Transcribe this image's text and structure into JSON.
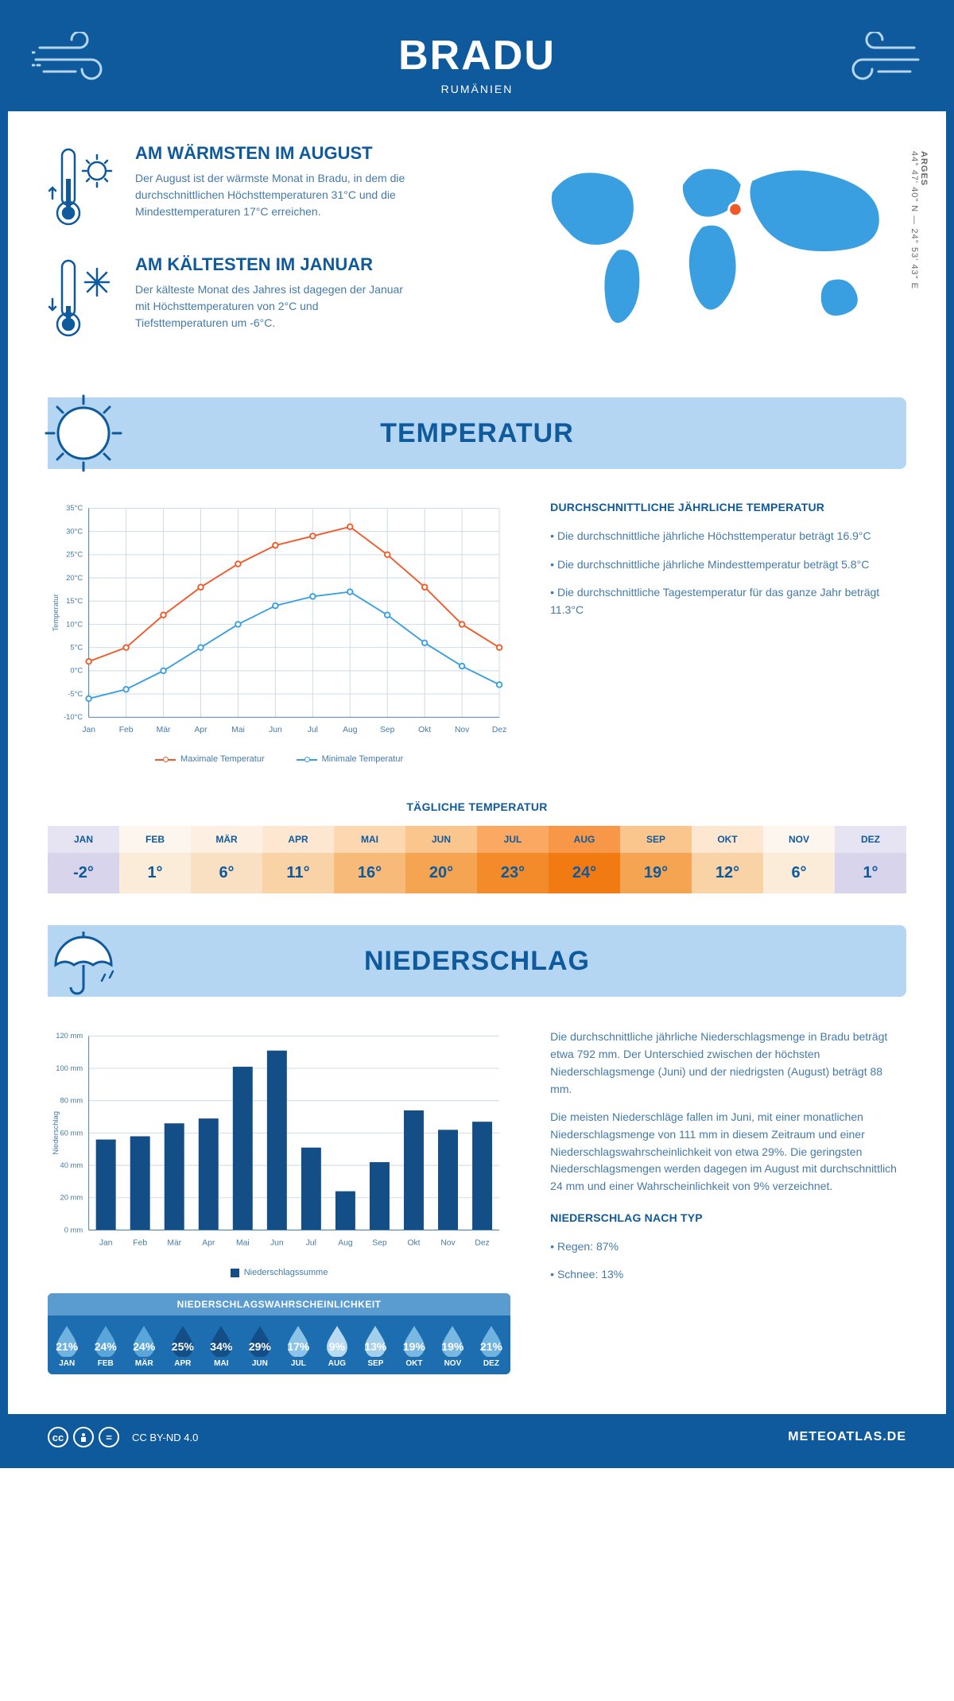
{
  "header": {
    "city": "BRADU",
    "country": "RUMÄNIEN"
  },
  "coords": {
    "region": "ARGES",
    "text": "44° 47' 40\" N — 24° 53' 43\" E"
  },
  "hottest": {
    "title": "AM WÄRMSTEN IM AUGUST",
    "text": "Der August ist der wärmste Monat in Bradu, in dem die durchschnittlichen Höchsttemperaturen 31°C und die Mindesttemperaturen 17°C erreichen."
  },
  "coldest": {
    "title": "AM KÄLTESTEN IM JANUAR",
    "text": "Der kälteste Monat des Jahres ist dagegen der Januar mit Höchsttemperaturen von 2°C und Tiefsttemperaturen um -6°C."
  },
  "tempSection": {
    "title": "TEMPERATUR"
  },
  "tempChart": {
    "type": "line",
    "ylabel": "Temperatur",
    "ylim": [
      -10,
      35
    ],
    "ytick_step": 5,
    "months": [
      "Jan",
      "Feb",
      "Mär",
      "Apr",
      "Mai",
      "Jun",
      "Jul",
      "Aug",
      "Sep",
      "Okt",
      "Nov",
      "Dez"
    ],
    "max": {
      "label": "Maximale Temperatur",
      "color": "#f05a28",
      "values": [
        2,
        5,
        12,
        18,
        23,
        27,
        29,
        31,
        25,
        18,
        10,
        5
      ]
    },
    "min": {
      "label": "Minimale Temperatur",
      "color": "#3a9fe0",
      "values": [
        -6,
        -4,
        0,
        5,
        10,
        14,
        16,
        17,
        12,
        6,
        1,
        -3
      ]
    },
    "grid_color": "#cbd9e8",
    "background": "#ffffff",
    "label_fontsize": 10
  },
  "tempInfo": {
    "title": "DURCHSCHNITTLICHE JÄHRLICHE TEMPERATUR",
    "b1": "• Die durchschnittliche jährliche Höchsttemperatur beträgt 16.9°C",
    "b2": "• Die durchschnittliche jährliche Mindesttemperatur beträgt 5.8°C",
    "b3": "• Die durchschnittliche Tagestemperatur für das ganze Jahr beträgt 11.3°C"
  },
  "dailyTemp": {
    "title": "TÄGLICHE TEMPERATUR",
    "months": [
      "JAN",
      "FEB",
      "MÄR",
      "APR",
      "MAI",
      "JUN",
      "JUL",
      "AUG",
      "SEP",
      "OKT",
      "NOV",
      "DEZ"
    ],
    "values": [
      "-2°",
      "1°",
      "6°",
      "11°",
      "16°",
      "20°",
      "23°",
      "24°",
      "19°",
      "12°",
      "6°",
      "1°"
    ],
    "header_colors": [
      "#e6e4f3",
      "#fdf6ef",
      "#fdf0e3",
      "#fde7d0",
      "#fcd7b0",
      "#fbc68d",
      "#faa862",
      "#f89748",
      "#fbc68d",
      "#fde7d0",
      "#fdf6ef",
      "#e6e4f3"
    ],
    "value_colors": [
      "#d7d4ec",
      "#fbecd9",
      "#fae0c3",
      "#f9d2a6",
      "#f7ba79",
      "#f5a551",
      "#f38b2a",
      "#f17a12",
      "#f5a551",
      "#f9d2a6",
      "#fbecd9",
      "#d7d4ec"
    ]
  },
  "precipSection": {
    "title": "NIEDERSCHLAG"
  },
  "precipChart": {
    "type": "bar",
    "ylabel": "Niederschlag",
    "ylim": [
      0,
      120
    ],
    "ytick_step": 20,
    "months": [
      "Jan",
      "Feb",
      "Mär",
      "Apr",
      "Mai",
      "Jun",
      "Jul",
      "Aug",
      "Sep",
      "Okt",
      "Nov",
      "Dez"
    ],
    "values": [
      56,
      58,
      66,
      69,
      101,
      111,
      51,
      24,
      42,
      74,
      62,
      67
    ],
    "bar_color": "#134e86",
    "legend": "Niederschlagssumme",
    "grid_color": "#cbd9e8",
    "bar_width": 0.58
  },
  "precipInfo": {
    "p1": "Die durchschnittliche jährliche Niederschlagsmenge in Bradu beträgt etwa 792 mm. Der Unterschied zwischen der höchsten Niederschlagsmenge (Juni) und der niedrigsten (August) beträgt 88 mm.",
    "p2": "Die meisten Niederschläge fallen im Juni, mit einer monatlichen Niederschlagsmenge von 111 mm in diesem Zeitraum und einer Niederschlagswahrscheinlichkeit von etwa 29%. Die geringsten Niederschlagsmengen werden dagegen im August mit durchschnittlich 24 mm und einer Wahrscheinlichkeit von 9% verzeichnet.",
    "typeTitle": "NIEDERSCHLAG NACH TYP",
    "type1": "• Regen: 87%",
    "type2": "• Schnee: 13%"
  },
  "precipProb": {
    "title": "NIEDERSCHLAGSWAHRSCHEINLICHKEIT",
    "months": [
      "JAN",
      "FEB",
      "MÄR",
      "APR",
      "MAI",
      "JUN",
      "JUL",
      "AUG",
      "SEP",
      "OKT",
      "NOV",
      "DEZ"
    ],
    "values": [
      "21%",
      "24%",
      "24%",
      "25%",
      "34%",
      "29%",
      "17%",
      "9%",
      "13%",
      "19%",
      "19%",
      "21%"
    ],
    "drop_colors": [
      "#6fb3e0",
      "#5aa6da",
      "#5aa6da",
      "#134e86",
      "#134e86",
      "#134e86",
      "#8cc3e8",
      "#b9daf1",
      "#a4cfec",
      "#79b8e2",
      "#79b8e2",
      "#6fb3e0"
    ]
  },
  "footer": {
    "license": "CC BY-ND 4.0",
    "brand": "METEOATLAS.DE"
  }
}
